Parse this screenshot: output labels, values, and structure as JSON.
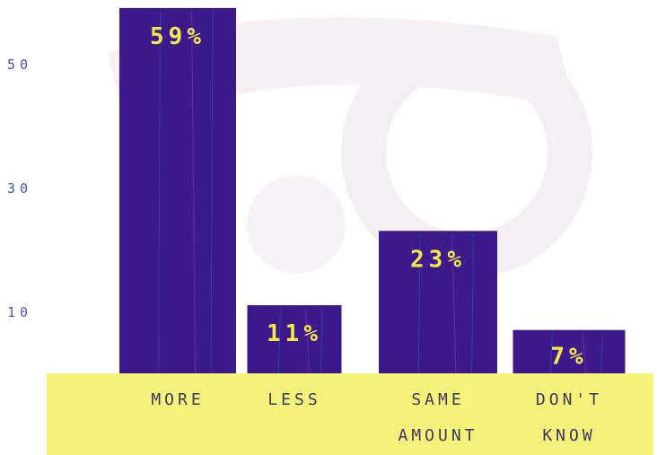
{
  "chart_data": {
    "type": "bar",
    "categories": [
      [
        "MORE"
      ],
      [
        "LESS"
      ],
      [
        "SAME",
        "AMOUNT"
      ],
      [
        "DON'T",
        "KNOW"
      ]
    ],
    "values": [
      59,
      11,
      23,
      7
    ],
    "data_labels": [
      "59%",
      "11%",
      "23%",
      "7%"
    ],
    "y_ticks": [
      10,
      30,
      50
    ],
    "ylim": [
      0,
      60
    ],
    "grid": false,
    "colors": {
      "bar": "#3d1a8c",
      "bar_label": "#f2e84a",
      "category_band": "#f4f27a",
      "tick_label": "#4a55a8",
      "category_label": "#3a3a5a"
    }
  }
}
